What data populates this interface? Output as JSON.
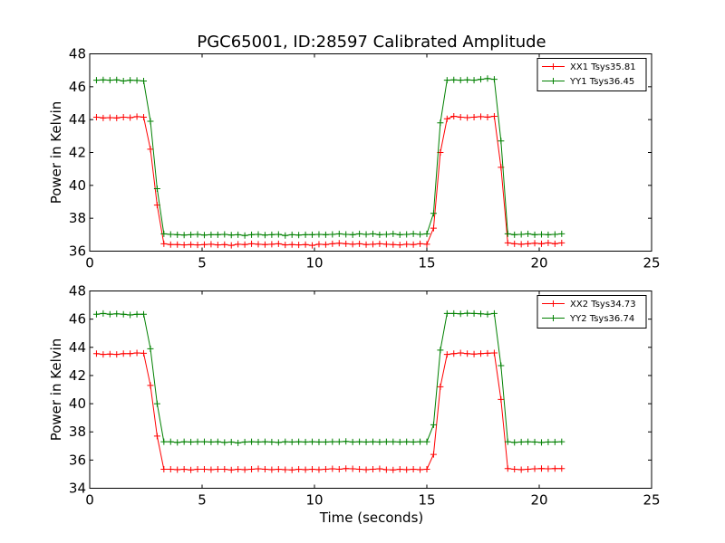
{
  "figure": {
    "title": "PGC65001, ID:28597 Calibrated Amplitude",
    "xlabel": "Time (seconds)"
  },
  "chart_data": [
    {
      "type": "line",
      "ylabel": "Power in Kelvin",
      "xlim": [
        0,
        25
      ],
      "ylim": [
        36,
        48
      ],
      "xticks": [
        "0",
        "5",
        "10",
        "15",
        "20",
        "25"
      ],
      "yticks": [
        "36",
        "38",
        "40",
        "42",
        "44",
        "46",
        "48"
      ],
      "legend_position": "top-right",
      "grid": false,
      "x": [
        0.3,
        0.6,
        0.9,
        1.2,
        1.5,
        1.8,
        2.1,
        2.4,
        2.7,
        3.0,
        3.3,
        3.6,
        3.9,
        4.2,
        4.5,
        4.8,
        5.1,
        5.4,
        5.7,
        6.0,
        6.3,
        6.6,
        6.9,
        7.2,
        7.5,
        7.8,
        8.1,
        8.4,
        8.7,
        9.0,
        9.3,
        9.6,
        9.9,
        10.2,
        10.5,
        10.8,
        11.1,
        11.4,
        11.7,
        12.0,
        12.3,
        12.6,
        12.9,
        13.2,
        13.5,
        13.8,
        14.1,
        14.4,
        14.7,
        15.0,
        15.3,
        15.6,
        15.9,
        16.2,
        16.5,
        16.8,
        17.1,
        17.4,
        17.7,
        18.0,
        18.3,
        18.6,
        18.9,
        19.2,
        19.5,
        19.8,
        20.1,
        20.4,
        20.7,
        21.0
      ],
      "series": [
        {
          "name": "XX1 Tsys35.81",
          "color": "#ff0000",
          "values": [
            44.15,
            44.1,
            44.12,
            44.1,
            44.15,
            44.12,
            44.18,
            44.15,
            42.2,
            38.8,
            36.45,
            36.4,
            36.4,
            36.38,
            36.4,
            36.38,
            36.4,
            36.42,
            36.38,
            36.4,
            36.35,
            36.42,
            36.4,
            36.45,
            36.42,
            36.4,
            36.42,
            36.45,
            36.38,
            36.4,
            36.38,
            36.4,
            36.35,
            36.42,
            36.4,
            36.45,
            36.48,
            36.45,
            36.42,
            36.45,
            36.4,
            36.42,
            36.45,
            36.42,
            36.4,
            36.38,
            36.42,
            36.4,
            36.45,
            36.42,
            37.4,
            42.0,
            44.05,
            44.2,
            44.15,
            44.12,
            44.15,
            44.18,
            44.15,
            44.2,
            41.1,
            36.5,
            36.45,
            36.42,
            36.45,
            36.48,
            36.45,
            36.5,
            36.45,
            36.5
          ]
        },
        {
          "name": "YY1 Tsys36.45",
          "color": "#008000",
          "values": [
            46.4,
            46.42,
            46.4,
            46.42,
            46.35,
            46.4,
            46.38,
            46.35,
            43.9,
            39.8,
            37.05,
            37.02,
            37.0,
            36.98,
            37.0,
            37.02,
            36.98,
            37.0,
            37.0,
            37.02,
            36.98,
            37.0,
            36.95,
            37.0,
            37.02,
            36.98,
            37.0,
            37.02,
            36.95,
            37.0,
            36.98,
            37.0,
            37.0,
            37.02,
            37.0,
            37.02,
            37.05,
            37.02,
            37.0,
            37.05,
            37.02,
            37.05,
            37.0,
            37.02,
            37.05,
            37.0,
            37.02,
            37.05,
            37.02,
            37.05,
            38.3,
            43.8,
            46.4,
            46.42,
            46.4,
            46.42,
            46.4,
            46.45,
            46.5,
            46.45,
            42.7,
            37.05,
            37.0,
            37.02,
            37.05,
            37.0,
            37.02,
            37.0,
            37.02,
            37.05
          ]
        }
      ]
    },
    {
      "type": "line",
      "ylabel": "Power in Kelvin",
      "xlim": [
        0,
        25
      ],
      "ylim": [
        34,
        48
      ],
      "xticks": [
        "0",
        "5",
        "10",
        "15",
        "20",
        "25"
      ],
      "yticks": [
        "34",
        "36",
        "38",
        "40",
        "42",
        "44",
        "46",
        "48"
      ],
      "legend_position": "top-right",
      "grid": false,
      "x": [
        0.3,
        0.6,
        0.9,
        1.2,
        1.5,
        1.8,
        2.1,
        2.4,
        2.7,
        3.0,
        3.3,
        3.6,
        3.9,
        4.2,
        4.5,
        4.8,
        5.1,
        5.4,
        5.7,
        6.0,
        6.3,
        6.6,
        6.9,
        7.2,
        7.5,
        7.8,
        8.1,
        8.4,
        8.7,
        9.0,
        9.3,
        9.6,
        9.9,
        10.2,
        10.5,
        10.8,
        11.1,
        11.4,
        11.7,
        12.0,
        12.3,
        12.6,
        12.9,
        13.2,
        13.5,
        13.8,
        14.1,
        14.4,
        14.7,
        15.0,
        15.3,
        15.6,
        15.9,
        16.2,
        16.5,
        16.8,
        17.1,
        17.4,
        17.7,
        18.0,
        18.3,
        18.6,
        18.9,
        19.2,
        19.5,
        19.8,
        20.1,
        20.4,
        20.7,
        21.0
      ],
      "series": [
        {
          "name": "XX2 Tsys34.73",
          "color": "#ff0000",
          "values": [
            43.55,
            43.5,
            43.52,
            43.5,
            43.55,
            43.55,
            43.6,
            43.58,
            41.3,
            37.7,
            35.35,
            35.35,
            35.32,
            35.35,
            35.3,
            35.35,
            35.35,
            35.32,
            35.35,
            35.35,
            35.3,
            35.35,
            35.32,
            35.35,
            35.38,
            35.35,
            35.32,
            35.35,
            35.32,
            35.3,
            35.35,
            35.32,
            35.35,
            35.32,
            35.35,
            35.38,
            35.35,
            35.4,
            35.38,
            35.35,
            35.32,
            35.35,
            35.38,
            35.32,
            35.3,
            35.35,
            35.32,
            35.35,
            35.32,
            35.35,
            36.4,
            41.2,
            43.5,
            43.55,
            43.6,
            43.55,
            43.52,
            43.55,
            43.58,
            43.6,
            40.3,
            35.4,
            35.35,
            35.32,
            35.35,
            35.38,
            35.4,
            35.38,
            35.4,
            35.4
          ]
        },
        {
          "name": "YY2 Tsys36.74",
          "color": "#008000",
          "values": [
            46.35,
            46.4,
            46.35,
            46.38,
            46.35,
            46.3,
            46.35,
            46.35,
            43.9,
            40.0,
            37.3,
            37.3,
            37.25,
            37.3,
            37.28,
            37.3,
            37.3,
            37.28,
            37.3,
            37.25,
            37.28,
            37.22,
            37.28,
            37.3,
            37.28,
            37.3,
            37.28,
            37.25,
            37.3,
            37.28,
            37.3,
            37.28,
            37.3,
            37.28,
            37.28,
            37.3,
            37.3,
            37.32,
            37.28,
            37.3,
            37.28,
            37.3,
            37.28,
            37.3,
            37.3,
            37.28,
            37.3,
            37.28,
            37.3,
            37.3,
            38.5,
            43.8,
            46.4,
            46.4,
            46.38,
            46.42,
            46.4,
            46.38,
            46.35,
            46.4,
            42.7,
            37.3,
            37.25,
            37.28,
            37.3,
            37.28,
            37.25,
            37.28,
            37.28,
            37.3
          ]
        }
      ]
    }
  ]
}
